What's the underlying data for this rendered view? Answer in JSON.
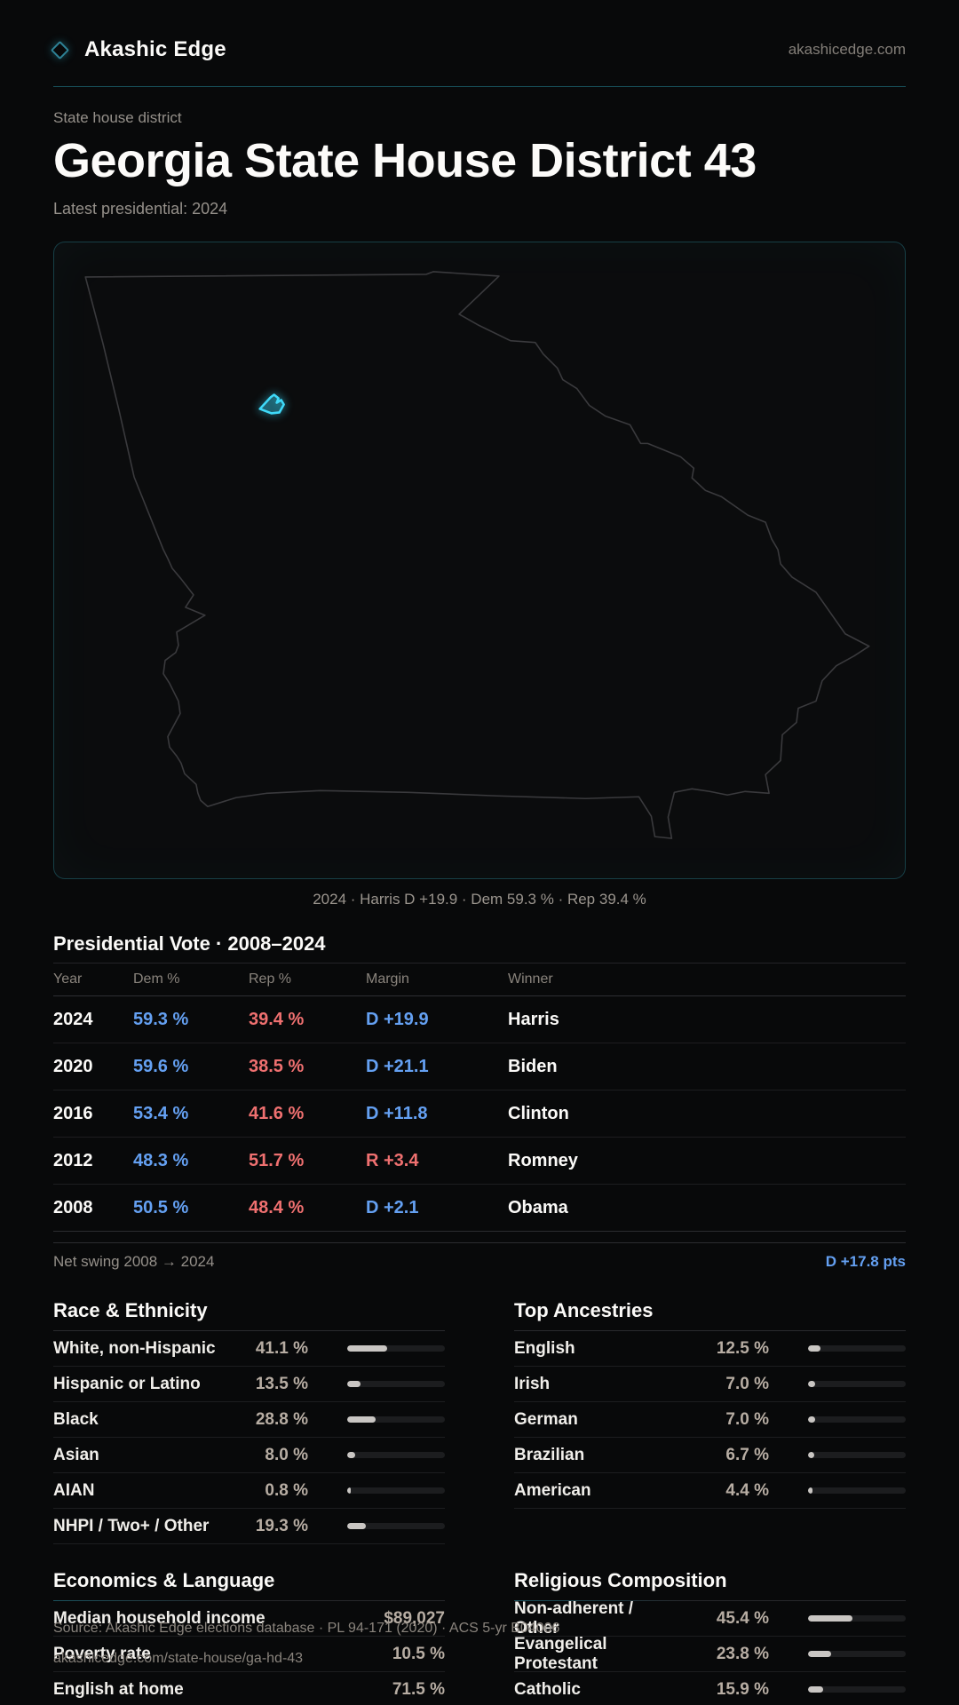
{
  "brand": {
    "name": "Akashic Edge",
    "domain": "akashicedge.com",
    "logo_icon": "diamond-icon"
  },
  "hero": {
    "eyebrow": "State house district",
    "title": "Georgia State House District 43",
    "subtitle": "Latest presidential: 2024"
  },
  "map": {
    "region": "Georgia",
    "caption": "2024 · Harris D +19.9 · Dem 59.3 % · Rep 39.4 %"
  },
  "table": {
    "title": "Presidential Vote · 2008–2024",
    "columns": [
      "Year",
      "Dem %",
      "Rep %",
      "Margin",
      "Winner"
    ],
    "rows": [
      {
        "year": "2024",
        "dem": "59.3 %",
        "rep": "39.4 %",
        "margin": "D +19.9",
        "party": "D",
        "winner": "Harris"
      },
      {
        "year": "2020",
        "dem": "59.6 %",
        "rep": "38.5 %",
        "margin": "D +21.1",
        "party": "D",
        "winner": "Biden"
      },
      {
        "year": "2016",
        "dem": "53.4 %",
        "rep": "41.6 %",
        "margin": "D +11.8",
        "party": "D",
        "winner": "Clinton"
      },
      {
        "year": "2012",
        "dem": "48.3 %",
        "rep": "51.7 %",
        "margin": "R +3.4",
        "party": "R",
        "winner": "Romney"
      },
      {
        "year": "2008",
        "dem": "50.5 %",
        "rep": "48.4 %",
        "margin": "D +2.1",
        "party": "D",
        "winner": "Obama"
      }
    ],
    "net_swing_label": "Net swing 2008 → 2024",
    "net_swing_value": "D +17.8 pts"
  },
  "sections": {
    "race": {
      "title": "Race & Ethnicity",
      "rows": [
        {
          "label": "White, non-Hispanic",
          "value": "41.1 %",
          "pct": 41.1
        },
        {
          "label": "Hispanic or Latino",
          "value": "13.5 %",
          "pct": 13.5
        },
        {
          "label": "Black",
          "value": "28.8 %",
          "pct": 28.8
        },
        {
          "label": "Asian",
          "value": "8.0 %",
          "pct": 8.0
        },
        {
          "label": "AIAN",
          "value": "0.8 %",
          "pct": 0.8
        },
        {
          "label": "NHPI / Two+ / Other",
          "value": "19.3 %",
          "pct": 19.3
        }
      ]
    },
    "ancestries": {
      "title": "Top Ancestries",
      "rows": [
        {
          "label": "English",
          "value": "12.5 %",
          "pct": 12.5
        },
        {
          "label": "Irish",
          "value": "7.0 %",
          "pct": 7.0
        },
        {
          "label": "German",
          "value": "7.0 %",
          "pct": 7.0
        },
        {
          "label": "Brazilian",
          "value": "6.7 %",
          "pct": 6.7
        },
        {
          "label": "American",
          "value": "4.4 %",
          "pct": 4.4
        }
      ]
    },
    "economics": {
      "title": "Economics & Language",
      "rows": [
        {
          "label": "Median household income",
          "value": "$89,027"
        },
        {
          "label": "Poverty rate",
          "value": "10.5 %"
        },
        {
          "label": "English at home",
          "value": "71.5 %"
        }
      ]
    },
    "religion": {
      "title": "Religious Composition",
      "rows": [
        {
          "label": "Non-adherent / Other",
          "value": "45.4 %",
          "pct": 45.4
        },
        {
          "label": "Evangelical Protestant",
          "value": "23.8 %",
          "pct": 23.8
        },
        {
          "label": "Catholic",
          "value": "15.9 %",
          "pct": 15.9
        }
      ]
    }
  },
  "footer": {
    "line1": "Source: Akashic Edge elections database · PL 94-171 (2020) · ACS 5-yr B04006",
    "line2": "akashicedge.com/state-house/ga-hd-43"
  },
  "colors": {
    "accent_cyan": "#3fd9f8",
    "dem_blue": "#64a0f2",
    "rep_red": "#ef7070",
    "value_tan": "#b7ada3",
    "teal_rule": "#175059"
  }
}
